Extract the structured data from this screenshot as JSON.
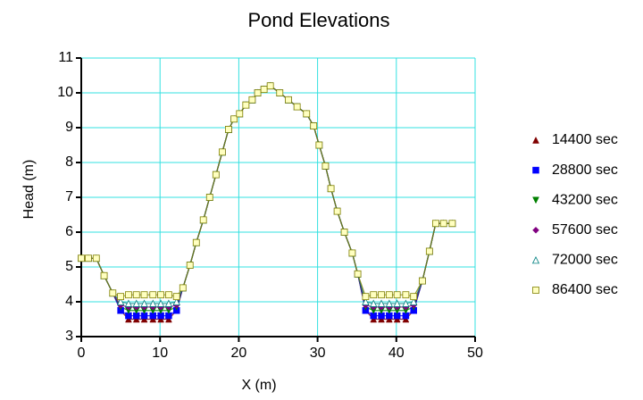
{
  "chart_data": {
    "type": "line",
    "title": "Pond Elevations",
    "x_label": "X (m)",
    "y_label": "Head (m)",
    "xlim": [
      0,
      50
    ],
    "xticks": [
      0,
      10,
      20,
      30,
      40,
      50
    ],
    "ylim": [
      3,
      11
    ],
    "yticks": [
      3,
      4,
      5,
      6,
      7,
      8,
      9,
      10,
      11
    ],
    "grid": true,
    "grid_color": "#33e0e0",
    "legend": "right",
    "x": [
      0,
      0.9,
      1.9,
      2.9,
      4.0,
      5.0,
      6.0,
      7.0,
      8.0,
      9.1,
      10.1,
      11.1,
      12.1,
      12.9,
      13.8,
      14.6,
      15.5,
      16.3,
      17.1,
      17.9,
      18.7,
      19.4,
      20.1,
      20.9,
      21.7,
      22.4,
      23.2,
      24.0,
      25.2,
      26.3,
      27.4,
      28.6,
      29.5,
      30.2,
      31.0,
      31.7,
      32.5,
      33.4,
      34.4,
      35.1,
      36.1,
      37.1,
      38.1,
      39.1,
      40.1,
      41.2,
      42.2,
      43.3,
      44.2,
      45.0,
      46.0,
      47.1
    ],
    "series": [
      {
        "name": "14400 sec",
        "color": "#800000",
        "marker": "triangle",
        "values": [
          5.25,
          5.25,
          5.25,
          4.75,
          4.25,
          3.75,
          3.5,
          3.5,
          3.5,
          3.5,
          3.5,
          3.5,
          3.75,
          4.4,
          5.05,
          5.7,
          6.35,
          7.0,
          7.65,
          8.3,
          8.95,
          9.25,
          9.4,
          9.65,
          9.8,
          10.0,
          10.1,
          10.2,
          10.0,
          9.8,
          9.6,
          9.4,
          9.05,
          8.5,
          7.9,
          7.25,
          6.6,
          6.0,
          5.4,
          4.8,
          3.75,
          3.5,
          3.5,
          3.5,
          3.5,
          3.5,
          3.75,
          4.6,
          5.45,
          6.25,
          6.25,
          6.25
        ]
      },
      {
        "name": "28800 sec",
        "color": "#0000ff",
        "marker": "square",
        "values": [
          5.25,
          5.25,
          5.25,
          4.75,
          4.25,
          3.75,
          3.6,
          3.6,
          3.6,
          3.6,
          3.6,
          3.6,
          3.75,
          4.4,
          5.05,
          5.7,
          6.35,
          7.0,
          7.65,
          8.3,
          8.95,
          9.25,
          9.4,
          9.65,
          9.8,
          10.0,
          10.1,
          10.2,
          10.0,
          9.8,
          9.6,
          9.4,
          9.05,
          8.5,
          7.9,
          7.25,
          6.6,
          6.0,
          5.4,
          4.8,
          3.75,
          3.6,
          3.6,
          3.6,
          3.6,
          3.6,
          3.75,
          4.6,
          5.45,
          6.25,
          6.25,
          6.25
        ]
      },
      {
        "name": "43200 sec",
        "color": "#008000",
        "marker": "down-triangle",
        "values": [
          5.25,
          5.25,
          5.25,
          4.75,
          4.25,
          3.85,
          3.75,
          3.75,
          3.75,
          3.75,
          3.75,
          3.75,
          3.85,
          4.4,
          5.05,
          5.7,
          6.35,
          7.0,
          7.65,
          8.3,
          8.95,
          9.25,
          9.4,
          9.65,
          9.8,
          10.0,
          10.1,
          10.2,
          10.0,
          9.8,
          9.6,
          9.4,
          9.05,
          8.5,
          7.9,
          7.25,
          6.6,
          6.0,
          5.4,
          4.8,
          3.85,
          3.75,
          3.75,
          3.75,
          3.75,
          3.75,
          3.85,
          4.6,
          5.45,
          6.25,
          6.25,
          6.25
        ]
      },
      {
        "name": "57600 sec",
        "color": "#800080",
        "marker": "diamond",
        "values": [
          5.25,
          5.25,
          5.25,
          4.75,
          4.25,
          3.9,
          3.85,
          3.85,
          3.85,
          3.85,
          3.85,
          3.85,
          3.9,
          4.4,
          5.05,
          5.7,
          6.35,
          7.0,
          7.65,
          8.3,
          8.95,
          9.25,
          9.4,
          9.65,
          9.8,
          10.0,
          10.1,
          10.2,
          10.0,
          9.8,
          9.6,
          9.4,
          9.05,
          8.5,
          7.9,
          7.25,
          6.6,
          6.0,
          5.4,
          4.8,
          3.9,
          3.85,
          3.85,
          3.85,
          3.85,
          3.85,
          3.9,
          4.6,
          5.45,
          6.25,
          6.25,
          6.25
        ]
      },
      {
        "name": "72000 sec",
        "color": "#008080",
        "marker": "open-triangle",
        "values": [
          5.25,
          5.25,
          5.25,
          4.75,
          4.25,
          4.0,
          3.95,
          3.95,
          3.95,
          3.95,
          3.95,
          3.95,
          4.0,
          4.4,
          5.05,
          5.7,
          6.35,
          7.0,
          7.65,
          8.3,
          8.95,
          9.25,
          9.4,
          9.65,
          9.8,
          10.0,
          10.1,
          10.2,
          10.0,
          9.8,
          9.6,
          9.4,
          9.05,
          8.5,
          7.9,
          7.25,
          6.6,
          6.0,
          5.4,
          4.8,
          4.0,
          3.95,
          3.95,
          3.95,
          3.95,
          3.95,
          4.0,
          4.6,
          5.45,
          6.25,
          6.25,
          6.25
        ]
      },
      {
        "name": "86400 sec",
        "color": "#808000",
        "marker": "open-square",
        "values": [
          5.25,
          5.25,
          5.25,
          4.75,
          4.25,
          4.15,
          4.2,
          4.2,
          4.2,
          4.2,
          4.2,
          4.2,
          4.15,
          4.4,
          5.05,
          5.7,
          6.35,
          7.0,
          7.65,
          8.3,
          8.95,
          9.25,
          9.4,
          9.65,
          9.8,
          10.0,
          10.1,
          10.2,
          10.0,
          9.8,
          9.6,
          9.4,
          9.05,
          8.5,
          7.9,
          7.25,
          6.6,
          6.0,
          5.4,
          4.8,
          4.15,
          4.2,
          4.2,
          4.2,
          4.2,
          4.2,
          4.15,
          4.6,
          5.45,
          6.25,
          6.25,
          6.25
        ]
      }
    ]
  }
}
